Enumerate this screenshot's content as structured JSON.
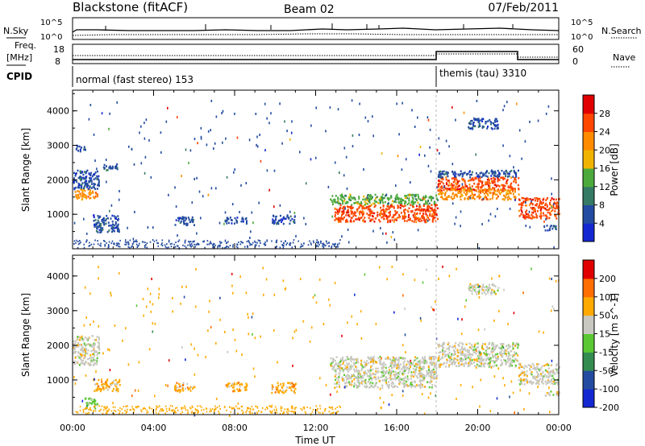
{
  "header": {
    "station": "Blackstone (fitACF)",
    "beam": "Beam 02",
    "date": "07/Feb/2011"
  },
  "noise_panel": {
    "left_label": "N.Sky",
    "right_label": "N.Search",
    "ticks": [
      "10^5",
      "10^0"
    ]
  },
  "freq_panel": {
    "left_label_1": "Freq.",
    "left_label_2": "[MHz]",
    "right_label": "Nave",
    "left_ticks": [
      "18",
      "8"
    ],
    "right_ticks": [
      "60",
      "0"
    ]
  },
  "cpid": {
    "label": "CPID",
    "segments": [
      {
        "name": "normal (fast stereo) 153",
        "start_hour": 0,
        "end_hour": 18
      },
      {
        "name": "themis (tau) 3310",
        "start_hour": 18,
        "end_hour": 24
      }
    ]
  },
  "colors": {
    "power": [
      "#1428d2",
      "#234ba0",
      "#357a64",
      "#4caa3c",
      "#f0b400",
      "#ff8c00",
      "#ff4600",
      "#e10000"
    ],
    "velocity": [
      "#1428d2",
      "#234ba0",
      "#358c50",
      "#5ac832",
      "#c8c8c0",
      "#ffaa00",
      "#ff6e00",
      "#e10000"
    ]
  },
  "chart_data": [
    {
      "type": "heatmap",
      "panel": "power",
      "xlabel": "",
      "ylabel": "Slant Range [km]",
      "yticks": [
        "1000",
        "2000",
        "3000",
        "4000"
      ],
      "ylim": [
        0,
        4600
      ],
      "xlim": [
        0,
        24
      ],
      "colorbar": {
        "label": "Power [dB]",
        "ticks": [
          "28",
          "24",
          "20",
          "16",
          "12",
          "8",
          "4"
        ],
        "range": [
          0,
          32
        ]
      },
      "regions": [
        {
          "hours": [
            0,
            1.2
          ],
          "range_km": [
            1450,
            1750
          ],
          "level": 5
        },
        {
          "hours": [
            0,
            1.3
          ],
          "range_km": [
            1750,
            2300
          ],
          "level": 1
        },
        {
          "hours": [
            0.1,
            0.6
          ],
          "range_km": [
            2850,
            3050
          ],
          "level": 1
        },
        {
          "hours": [
            1.0,
            2.3
          ],
          "range_km": [
            500,
            1000
          ],
          "level": 1
        },
        {
          "hours": [
            1.5,
            2.2
          ],
          "range_km": [
            2300,
            2500
          ],
          "level": 1
        },
        {
          "hours": [
            5.0,
            6.0
          ],
          "range_km": [
            700,
            950
          ],
          "level": 1
        },
        {
          "hours": [
            7.5,
            8.6
          ],
          "range_km": [
            750,
            950
          ],
          "level": 1
        },
        {
          "hours": [
            9.8,
            11.0
          ],
          "range_km": [
            750,
            1000
          ],
          "level": 1
        },
        {
          "hours": [
            12.7,
            18.0
          ],
          "range_km": [
            1300,
            1600
          ],
          "level": 3
        },
        {
          "hours": [
            12.9,
            18.0
          ],
          "range_km": [
            800,
            1300
          ],
          "level": 6
        },
        {
          "hours": [
            18.0,
            22.0
          ],
          "range_km": [
            1700,
            2100
          ],
          "level": 6
        },
        {
          "hours": [
            18.0,
            22.0
          ],
          "range_km": [
            1450,
            1750
          ],
          "level": 5
        },
        {
          "hours": [
            18.0,
            22.0
          ],
          "range_km": [
            2100,
            2300
          ],
          "level": 1
        },
        {
          "hours": [
            22.0,
            24.0
          ],
          "range_km": [
            900,
            1500
          ],
          "level": 6
        },
        {
          "hours": [
            19.5,
            21.0
          ],
          "range_km": [
            3500,
            3800
          ],
          "level": 1
        },
        {
          "hours": [
            23.3,
            24.0
          ],
          "range_km": [
            550,
            700
          ],
          "level": 1
        }
      ]
    },
    {
      "type": "heatmap",
      "panel": "velocity",
      "xlabel": "Time UT",
      "ylabel": "Slant Range [km]",
      "xticks": [
        "00:00",
        "04:00",
        "08:00",
        "12:00",
        "16:00",
        "20:00",
        "00:00"
      ],
      "yticks": [
        "1000",
        "2000",
        "3000",
        "4000"
      ],
      "ylim": [
        0,
        4600
      ],
      "xlim": [
        0,
        24
      ],
      "colorbar": {
        "label": "Velocity [m s^-1]",
        "ticks": [
          "200",
          "100",
          "50",
          "15",
          "-15",
          "-50",
          "-100",
          "-200"
        ]
      },
      "regions": [
        {
          "hours": [
            0,
            1.2
          ],
          "range_km": [
            1450,
            1750
          ],
          "level": 4
        },
        {
          "hours": [
            0,
            1.3
          ],
          "range_km": [
            1750,
            2300
          ],
          "level": 4
        },
        {
          "hours": [
            0.5,
            1.2
          ],
          "range_km": [
            200,
            500
          ],
          "level": 3
        },
        {
          "hours": [
            1.0,
            2.3
          ],
          "range_km": [
            700,
            1050
          ],
          "level": 5
        },
        {
          "hours": [
            5.0,
            6.0
          ],
          "range_km": [
            700,
            950
          ],
          "level": 5
        },
        {
          "hours": [
            7.5,
            8.6
          ],
          "range_km": [
            700,
            950
          ],
          "level": 5
        },
        {
          "hours": [
            9.8,
            11.0
          ],
          "range_km": [
            650,
            950
          ],
          "level": 5
        },
        {
          "hours": [
            12.7,
            18.0
          ],
          "range_km": [
            1300,
            1700
          ],
          "level": 4
        },
        {
          "hours": [
            12.9,
            18.0
          ],
          "range_km": [
            800,
            1300
          ],
          "level": 4
        },
        {
          "hours": [
            18.0,
            22.0
          ],
          "range_km": [
            1400,
            2100
          ],
          "level": 4
        },
        {
          "hours": [
            22.0,
            24.0
          ],
          "range_km": [
            900,
            1500
          ],
          "level": 4
        },
        {
          "hours": [
            19.5,
            21.0
          ],
          "range_km": [
            3500,
            3800
          ],
          "level": 4
        },
        {
          "hours": [
            23.3,
            24.0
          ],
          "range_km": [
            550,
            700
          ],
          "level": 4
        }
      ]
    }
  ]
}
